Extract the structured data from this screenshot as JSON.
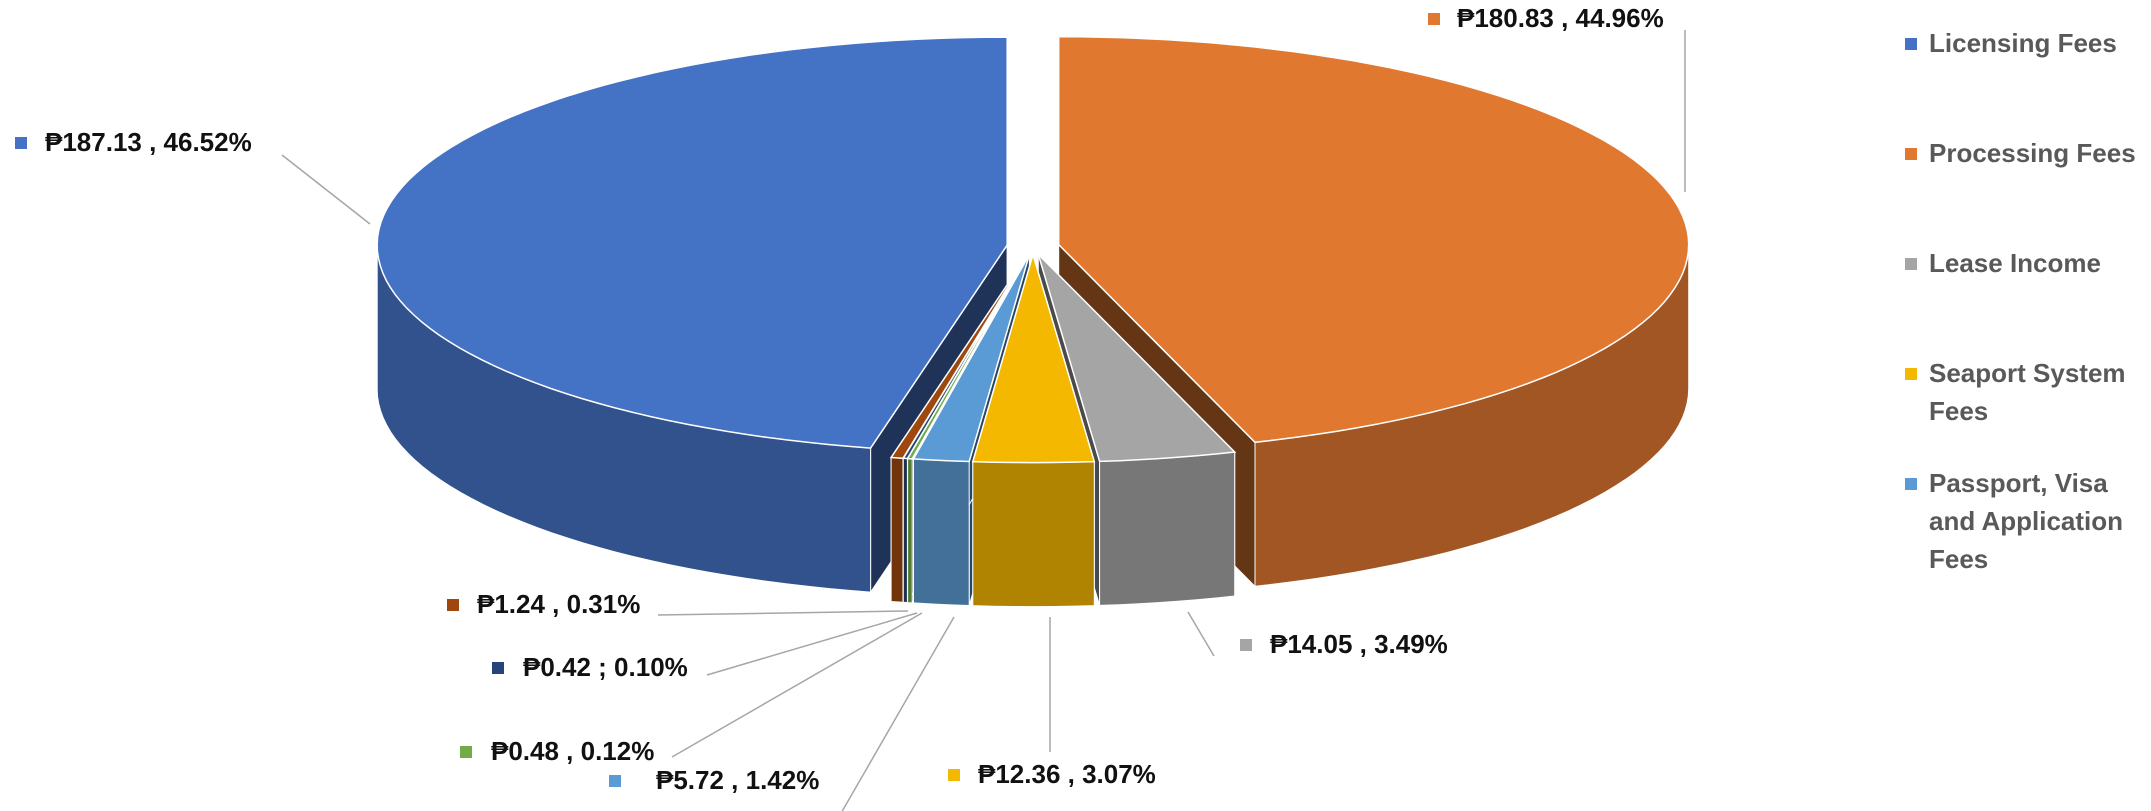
{
  "chart_data": {
    "type": "pie",
    "categories": [
      "Licensing Fees",
      "Processing Fees",
      "Lease Income",
      "Seaport System Fees",
      "Passport, Visa and Application Fees",
      null,
      null,
      null
    ],
    "values": [
      187.13,
      180.83,
      14.05,
      12.36,
      5.72,
      0.48,
      0.42,
      1.24
    ],
    "value_labels": [
      "₱187.13 , 46.52%",
      "₱180.83 , 44.96%",
      "₱14.05 , 3.49%",
      "₱12.36 , 3.07%",
      "₱5.72 , 1.42%",
      "₱0.48 , 0.12%",
      "₱0.42 ; 0.10%",
      "₱1.24 , 0.31%"
    ],
    "colors": [
      "#4472c4",
      "#e07830",
      "#a5a5a5",
      "#f5b800",
      "#5b9bd5",
      "#70ad47",
      "#264478",
      "#9e480e"
    ],
    "legend": "right",
    "three_d": true
  }
}
